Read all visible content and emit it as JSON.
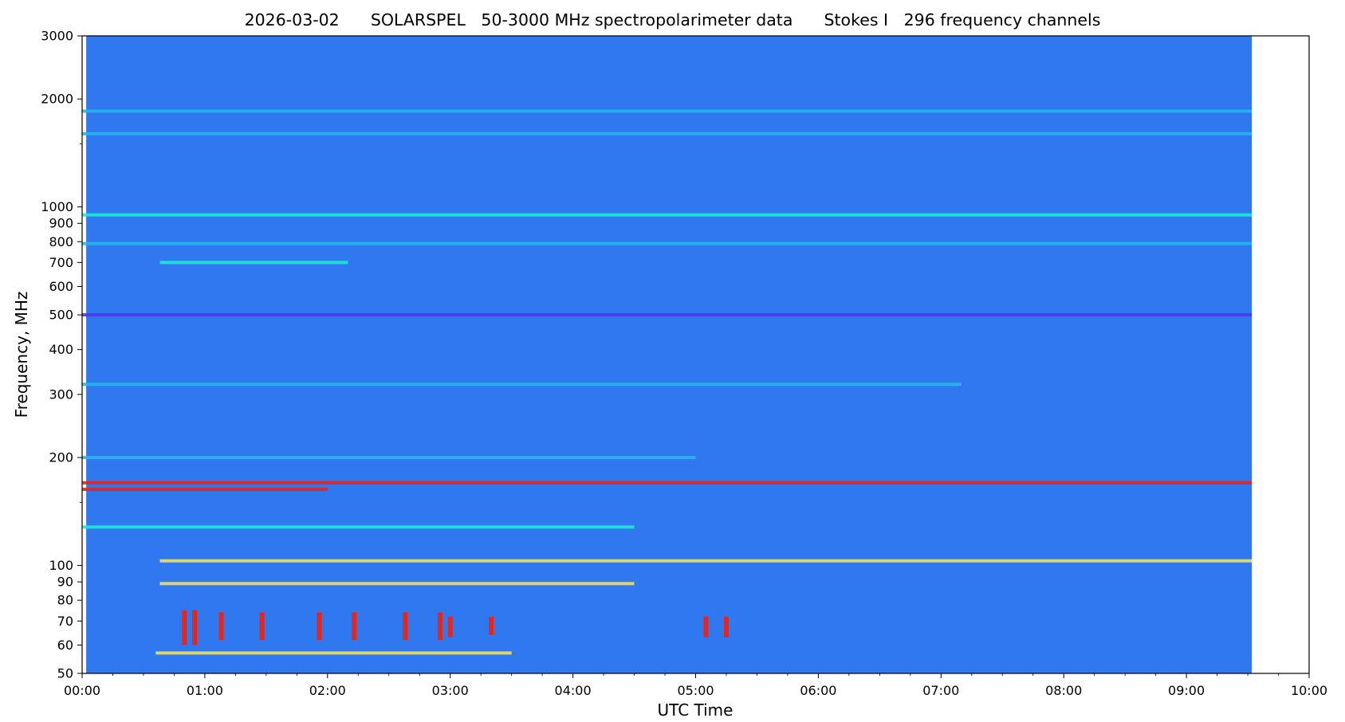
{
  "chart_data": {
    "type": "heatmap",
    "title": "2026-03-02      SOLARSPEL   50-3000 MHz spectropolarimeter data      Stokes I   296 frequency channels",
    "xlabel": "UTC Time",
    "ylabel": "Frequency, MHz",
    "x_range": [
      "00:00",
      "10:00"
    ],
    "data_time_range": [
      "00:02",
      "09:32"
    ],
    "y_range": [
      50,
      3000
    ],
    "y_scale": "log",
    "x_ticks": [
      "00:00",
      "01:00",
      "02:00",
      "03:00",
      "04:00",
      "05:00",
      "06:00",
      "07:00",
      "08:00",
      "09:00",
      "10:00"
    ],
    "y_ticks": [
      50,
      60,
      70,
      80,
      90,
      100,
      200,
      300,
      400,
      500,
      600,
      700,
      800,
      900,
      1000,
      2000,
      3000
    ],
    "y_minor_ticks": [
      150,
      1500
    ],
    "colormap": "rainbow",
    "colors": {
      "background": "#2f78f0",
      "dark": "#4f35ee",
      "light": "#27b4ec",
      "cyan": "#1fe7d6",
      "yellow": "#f2e05c",
      "red": "#e8251a"
    },
    "bands": [
      {
        "freq": 1850,
        "start": "00:00",
        "end": "09:32",
        "level": "light"
      },
      {
        "freq": 1600,
        "start": "00:00",
        "end": "09:32",
        "level": "light"
      },
      {
        "freq": 950,
        "start": "00:00",
        "end": "09:32",
        "level": "cyan"
      },
      {
        "freq": 790,
        "start": "00:00",
        "end": "09:32",
        "level": "light"
      },
      {
        "freq": 700,
        "start": "00:38",
        "end": "02:10",
        "level": "cyan"
      },
      {
        "freq": 500,
        "start": "00:00",
        "end": "09:32",
        "level": "dark"
      },
      {
        "freq": 320,
        "start": "00:00",
        "end": "07:10",
        "level": "light"
      },
      {
        "freq": 200,
        "start": "00:00",
        "end": "05:00",
        "level": "light"
      },
      {
        "freq": 170,
        "start": "00:00",
        "end": "09:32",
        "level": "red"
      },
      {
        "freq": 163,
        "start": "00:00",
        "end": "02:00",
        "level": "red"
      },
      {
        "freq": 128,
        "start": "00:00",
        "end": "04:30",
        "level": "cyan"
      },
      {
        "freq": 103,
        "start": "00:38",
        "end": "09:32",
        "level": "yellow"
      },
      {
        "freq": 89,
        "start": "00:38",
        "end": "04:30",
        "level": "yellow"
      },
      {
        "freq": 57,
        "start": "00:36",
        "end": "03:30",
        "level": "yellow"
      }
    ],
    "bursts": [
      {
        "time": "00:50",
        "freq_lo": 60,
        "freq_hi": 75,
        "level": "red"
      },
      {
        "time": "00:55",
        "freq_lo": 60,
        "freq_hi": 75,
        "level": "red"
      },
      {
        "time": "01:08",
        "freq_lo": 62,
        "freq_hi": 74,
        "level": "red"
      },
      {
        "time": "01:28",
        "freq_lo": 62,
        "freq_hi": 74,
        "level": "red"
      },
      {
        "time": "01:56",
        "freq_lo": 62,
        "freq_hi": 74,
        "level": "red"
      },
      {
        "time": "02:13",
        "freq_lo": 62,
        "freq_hi": 74,
        "level": "red"
      },
      {
        "time": "02:38",
        "freq_lo": 62,
        "freq_hi": 74,
        "level": "red"
      },
      {
        "time": "02:55",
        "freq_lo": 62,
        "freq_hi": 74,
        "level": "red"
      },
      {
        "time": "03:00",
        "freq_lo": 63,
        "freq_hi": 72,
        "level": "red"
      },
      {
        "time": "03:20",
        "freq_lo": 64,
        "freq_hi": 72,
        "level": "red"
      },
      {
        "time": "05:05",
        "freq_lo": 63,
        "freq_hi": 72,
        "level": "red"
      },
      {
        "time": "05:15",
        "freq_lo": 63,
        "freq_hi": 72,
        "level": "red"
      }
    ]
  }
}
